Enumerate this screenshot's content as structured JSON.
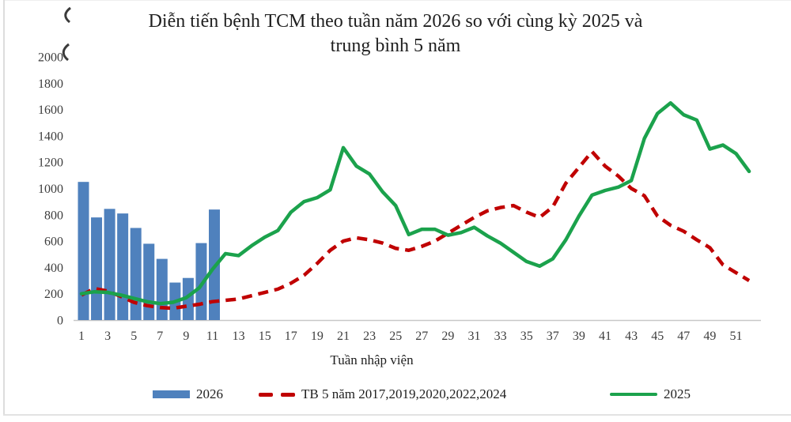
{
  "title": {
    "line1": "Diễn tiến bệnh TCM theo tuần năm 2026 so với cùng kỳ 2025 và",
    "line2": "trung bình 5 năm"
  },
  "xaxis_title": "Tuần nhập viện",
  "legend": {
    "items": [
      {
        "label": "2026",
        "swatch": "bar",
        "color": "#4f81bd"
      },
      {
        "label": "TB 5 năm 2017,2019,2020,2022,2024",
        "swatch": "dashed-line",
        "color": "#c00000"
      },
      {
        "label": "2025",
        "swatch": "line",
        "color": "#1ba24c"
      }
    ]
  },
  "colors": {
    "bar_2026": "#4f81bd",
    "line_tb5": "#c00000",
    "line_2025": "#1ba24c",
    "axis_line": "#c8c8c8",
    "tick_text": "#3d3d3d"
  },
  "chart_data": {
    "type": "combo bar+line",
    "title": "Diễn tiến bệnh TCM theo tuần năm 2026 so với cùng kỳ 2025 và trung bình 5 năm",
    "xlabel": "Tuần nhập viện",
    "ylabel": "",
    "ylim": [
      0,
      2000
    ],
    "yticks": [
      0,
      200,
      400,
      600,
      800,
      1000,
      1200,
      1400,
      1600,
      1800,
      2000
    ],
    "xticks": [
      1,
      3,
      5,
      7,
      9,
      11,
      13,
      15,
      17,
      19,
      21,
      23,
      25,
      27,
      29,
      31,
      33,
      35,
      37,
      39,
      41,
      43,
      45,
      47,
      49,
      51
    ],
    "x_weeks_range": [
      1,
      52
    ],
    "grid": false,
    "legend_position": "bottom",
    "series": [
      {
        "name": "2026",
        "type": "bar",
        "color": "#4f81bd",
        "weeks": [
          1,
          2,
          3,
          4,
          5,
          6,
          7,
          8,
          9,
          10,
          11
        ],
        "values": [
          1050,
          780,
          845,
          810,
          700,
          580,
          465,
          285,
          320,
          585,
          840
        ]
      },
      {
        "name": "TB 5 năm 2017,2019,2020,2022,2024",
        "type": "line-dashed",
        "color": "#c00000",
        "values": [
          190,
          240,
          220,
          180,
          135,
          110,
          95,
          90,
          105,
          120,
          140,
          150,
          160,
          185,
          210,
          235,
          280,
          340,
          430,
          530,
          600,
          625,
          610,
          585,
          545,
          530,
          560,
          600,
          660,
          720,
          780,
          830,
          855,
          870,
          820,
          780,
          860,
          1040,
          1160,
          1280,
          1170,
          1095,
          1000,
          945,
          790,
          720,
          675,
          610,
          550,
          420,
          360,
          300
        ]
      },
      {
        "name": "2025",
        "type": "line",
        "color": "#1ba24c",
        "values": [
          200,
          215,
          210,
          190,
          165,
          140,
          125,
          135,
          170,
          245,
          385,
          505,
          490,
          565,
          630,
          680,
          820,
          900,
          930,
          990,
          1310,
          1170,
          1110,
          975,
          870,
          650,
          690,
          690,
          645,
          665,
          705,
          640,
          585,
          515,
          445,
          410,
          465,
          610,
          790,
          950,
          985,
          1010,
          1060,
          1380,
          1570,
          1650,
          1560,
          1520,
          1300,
          1330,
          1265,
          1130
        ]
      }
    ]
  }
}
